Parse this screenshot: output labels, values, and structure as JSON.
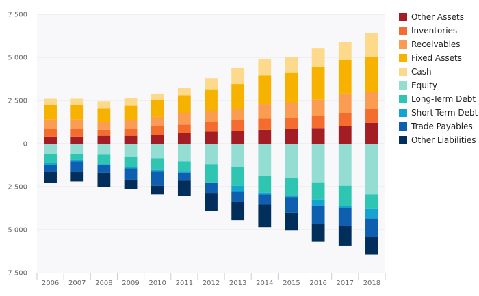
{
  "chart_data": {
    "type": "bar",
    "stacked": true,
    "title": "",
    "xlabel": "",
    "ylabel": "",
    "ylim": [
      -7500,
      7500
    ],
    "yticks": [
      7500,
      5000,
      2500,
      0,
      -2500,
      -5000,
      -7500
    ],
    "ytick_labels": [
      "7 500",
      "5 000",
      "2 500",
      "0",
      "-2 500",
      "-5 000",
      "-7 500"
    ],
    "grid": true,
    "legend_position": "right",
    "categories": [
      "2006",
      "2007",
      "2008",
      "2009",
      "2010",
      "2011",
      "2012",
      "2013",
      "2014",
      "2015",
      "2016",
      "2017",
      "2018"
    ],
    "series": [
      {
        "name": "Other Assets",
        "color": "#a31d24",
        "values": [
          400,
          400,
          450,
          450,
          500,
          600,
          700,
          750,
          800,
          850,
          900,
          1000,
          1200
        ]
      },
      {
        "name": "Inventories",
        "color": "#f46d2f",
        "values": [
          450,
          450,
          350,
          400,
          500,
          500,
          550,
          600,
          650,
          650,
          700,
          750,
          800
        ]
      },
      {
        "name": "Receivables",
        "color": "#fa9d52",
        "values": [
          550,
          550,
          450,
          500,
          550,
          650,
          650,
          650,
          850,
          900,
          950,
          1150,
          1000
        ]
      },
      {
        "name": "Fixed Assets",
        "color": "#f7b200",
        "values": [
          850,
          850,
          800,
          850,
          950,
          1050,
          1250,
          1450,
          1650,
          1700,
          1900,
          1950,
          2000
        ]
      },
      {
        "name": "Cash",
        "color": "#fdd98b",
        "values": [
          350,
          350,
          400,
          450,
          400,
          450,
          650,
          950,
          950,
          900,
          1100,
          1050,
          1400
        ]
      },
      {
        "name": "Equity",
        "color": "#93ddd3",
        "values": [
          -600,
          -600,
          -650,
          -750,
          -850,
          -1050,
          -1200,
          -1350,
          -1900,
          -2000,
          -2250,
          -2450,
          -2950
        ]
      },
      {
        "name": "Long-Term Debt",
        "color": "#2fc5b3",
        "values": [
          -550,
          -350,
          -550,
          -600,
          -650,
          -550,
          -1050,
          -1100,
          -950,
          -1000,
          -1000,
          -1200,
          -850
        ]
      },
      {
        "name": "Short-Term Debt",
        "color": "#13a4d0",
        "values": [
          -100,
          -100,
          -50,
          -100,
          -100,
          -100,
          -50,
          -350,
          -100,
          -100,
          -350,
          -100,
          -550
        ]
      },
      {
        "name": "Trade Payables",
        "color": "#0f5fb0",
        "values": [
          -400,
          -600,
          -450,
          -650,
          -850,
          -450,
          -600,
          -600,
          -600,
          -900,
          -1050,
          -1050,
          -1050
        ]
      },
      {
        "name": "Other Liabilities",
        "color": "#022e5c",
        "values": [
          -650,
          -550,
          -800,
          -550,
          -500,
          -900,
          -1000,
          -1050,
          -1300,
          -1050,
          -1050,
          -1150,
          -1050
        ]
      }
    ]
  }
}
